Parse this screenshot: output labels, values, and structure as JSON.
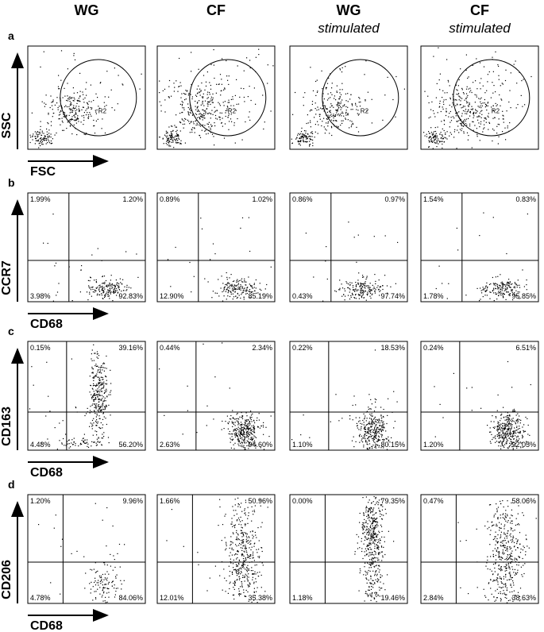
{
  "columns": [
    {
      "title": "WG"
    },
    {
      "title": "CF"
    },
    {
      "title": "WG",
      "subtitle": "stimulated"
    },
    {
      "title": "CF",
      "subtitle": "stimulated"
    }
  ],
  "panels": [
    {
      "label": "a",
      "y_axis": "SSC",
      "x_axis": "FSC",
      "gate": "R2"
    },
    {
      "label": "b",
      "y_axis": "CCR7",
      "x_axis": "CD68",
      "quadrants": [
        [
          "1.99%",
          "1.20%",
          "3.98%",
          "92.83%"
        ],
        [
          "0.89%",
          "1.02%",
          "12.90%",
          "85.19%"
        ],
        [
          "0.86%",
          "0.97%",
          "0.43%",
          "97.74%"
        ],
        [
          "1.54%",
          "0.83%",
          "1.78%",
          "95.85%"
        ]
      ]
    },
    {
      "label": "c",
      "y_axis": "CD163",
      "x_axis": "CD68",
      "quadrants": [
        [
          "0.15%",
          "39.16%",
          "4.48%",
          "56.20%"
        ],
        [
          "0.44%",
          "2.34%",
          "2.63%",
          "94.60%"
        ],
        [
          "0.22%",
          "18.53%",
          "1.10%",
          "80.15%"
        ],
        [
          "0.24%",
          "6.51%",
          "1.20%",
          "92.05%"
        ]
      ]
    },
    {
      "label": "d",
      "y_axis": "CD206",
      "x_axis": "CD68",
      "quadrants": [
        [
          "1.20%",
          "9.96%",
          "4.78%",
          "84.06%"
        ],
        [
          "1.66%",
          "50.96%",
          "12.01%",
          "35.38%"
        ],
        [
          "0.00%",
          "79.35%",
          "1.18%",
          "19.46%"
        ],
        [
          "0.47%",
          "58.06%",
          "2.84%",
          "38.63%"
        ]
      ]
    }
  ]
}
